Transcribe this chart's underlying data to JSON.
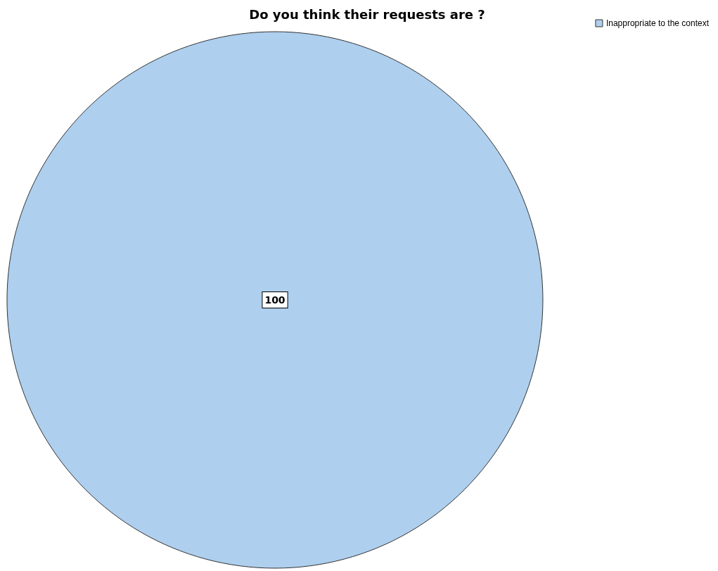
{
  "chart_data": {
    "type": "pie",
    "title": "Do you think their requests are ?",
    "categories": [
      "Inappropriate to the context"
    ],
    "values": [
      100
    ],
    "colors": [
      "#aecfee"
    ],
    "data_labels": true,
    "legend": "top right"
  }
}
